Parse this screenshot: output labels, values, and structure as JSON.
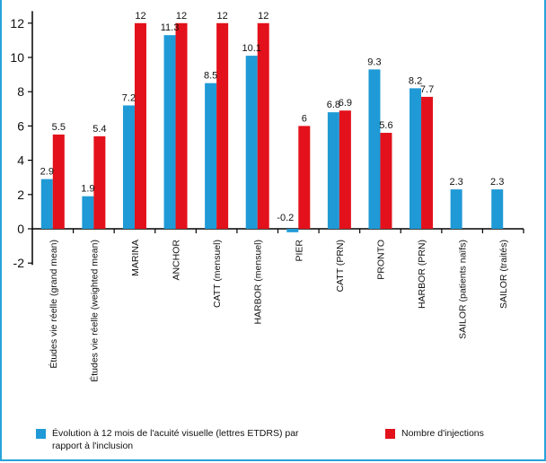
{
  "chart_data": {
    "type": "bar",
    "categories": [
      "Études vie réelle (grand mean)",
      "Études vie réelle (weighted mean)",
      "MARINA",
      "ANCHOR",
      "CATT (mensuel)",
      "HARBOR (mensuel)",
      "PIER",
      "CATT (PRN)",
      "PRONTO",
      "HARBOR (PRN)",
      "SAILOR (patients naïfs)",
      "SAILOR (traités)"
    ],
    "series": [
      {
        "name": "Évolution à 12 mois de l'acuité visuelle (lettres ETDRS) par rapport à l'inclusion",
        "color": "#1f9ad6",
        "values": [
          2.9,
          1.9,
          7.2,
          11.3,
          8.5,
          10.1,
          -0.2,
          6.8,
          9.3,
          8.2,
          2.3,
          2.3
        ],
        "labels": [
          "2.9",
          "1.9",
          "7.2",
          "11.3",
          "8.5",
          "10.1",
          "-0.2",
          "6.8",
          "9.3",
          "8.2",
          "2.3",
          "2.3"
        ]
      },
      {
        "name": "Nombre d'injections",
        "color": "#e3111b",
        "values": [
          5.5,
          5.4,
          12,
          12,
          12,
          12,
          6,
          6.9,
          5.6,
          7.7,
          null,
          null
        ],
        "labels": [
          "5.5",
          "5.4",
          "12",
          "12",
          "12",
          "12",
          "6",
          "6.9",
          "5.6",
          "7.7",
          null,
          null
        ]
      }
    ],
    "yticks": [
      "-2",
      "0",
      "2",
      "4",
      "6",
      "8",
      "10",
      "12"
    ],
    "ylim": [
      -2,
      12.7
    ],
    "grid": false,
    "legend_position": "bottom"
  },
  "legend": {
    "series_0_line1": "Évolution à 12 mois de l'acuité visuelle (lettres ETDRS) par",
    "series_0_line2": "rapport à l'inclusion",
    "series_1": "Nombre d'injections"
  }
}
